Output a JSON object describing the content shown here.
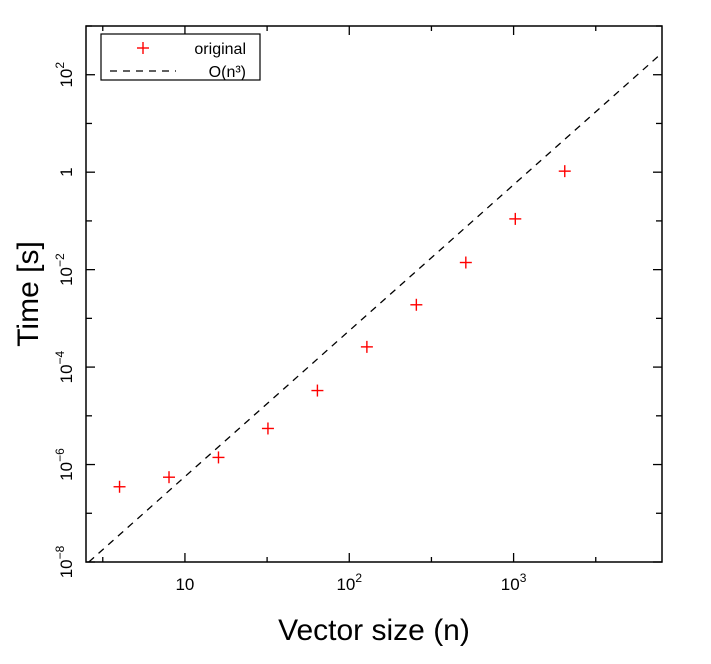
{
  "chart_data": {
    "type": "scatter",
    "xlabel": "Vector size (n)",
    "ylabel": "Time [s]",
    "xscale": "log",
    "yscale": "log",
    "xlim": [
      2.5,
      8000
    ],
    "ylim": [
      1e-08,
      1000
    ],
    "grid": false,
    "legend_position": "top-left",
    "x_ticks": [
      {
        "value": 10,
        "base": "10",
        "exp": ""
      },
      {
        "value": 100,
        "base": "10",
        "exp": "2"
      },
      {
        "value": 1000,
        "base": "10",
        "exp": "3"
      }
    ],
    "y_ticks": [
      {
        "value": 1e-08,
        "base": "10",
        "exp": "−8"
      },
      {
        "value": 1e-06,
        "base": "10",
        "exp": "−6"
      },
      {
        "value": 0.0001,
        "base": "10",
        "exp": "−4"
      },
      {
        "value": 0.01,
        "base": "10",
        "exp": "−2"
      },
      {
        "value": 1,
        "base": "1",
        "exp": ""
      },
      {
        "value": 100,
        "base": "10",
        "exp": "2"
      }
    ],
    "series": [
      {
        "name": "original",
        "style": "markers-plus",
        "color": "#ff0000",
        "x": [
          4,
          8,
          16,
          32,
          64,
          128,
          256,
          512,
          1024,
          2048
        ],
        "y": [
          3.5e-07,
          5.5e-07,
          1.4e-06,
          5.5e-06,
          3.3e-05,
          0.00026,
          0.0019,
          0.014,
          0.11,
          1.05
        ]
      },
      {
        "name": "O(n³)",
        "style": "dashed-line",
        "color": "#000000",
        "x": [
          2.6,
          8000
        ],
        "y": [
          1e-08,
          280.0
        ]
      }
    ]
  }
}
